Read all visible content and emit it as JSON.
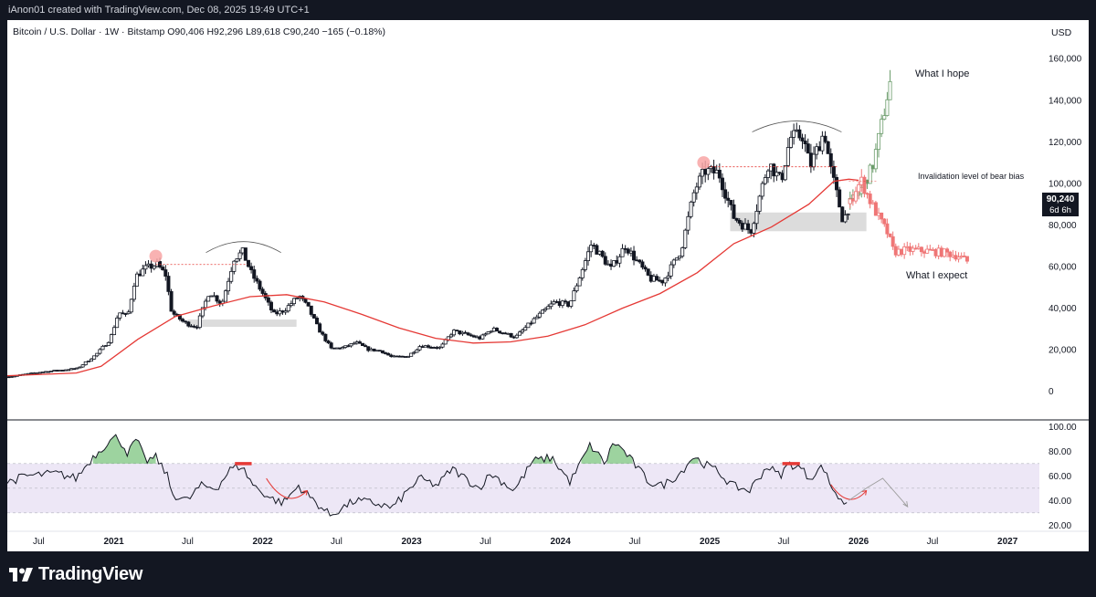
{
  "header": {
    "credit": "iAnon01 created with TradingView.com, Dec 08, 2025 19:49 UTC+1",
    "symbol": "Bitcoin / U.S. Dollar",
    "interval": "1W",
    "exchange": "Bitstamp",
    "ohlc": "O90,406  H92,296  L89,618  C90,240  −165 (−0.18%)"
  },
  "currency": "USD",
  "brand": "TradingView",
  "colors": {
    "candle": "#131722",
    "ma": "#e53935",
    "rsi": "#131722",
    "rsi_band": "#ede7f6",
    "overbought_fill": "#4caf50",
    "hope": "#6b9c6b",
    "expect": "#ef7676",
    "annotation_red": "#e53935"
  },
  "chart_data": {
    "type": "candlestick",
    "price_axis": {
      "ticks": [
        0,
        20000,
        40000,
        60000,
        80000,
        100000,
        120000,
        140000,
        160000
      ],
      "tick_labels": [
        "0",
        "20,000",
        "40,000",
        "60,000",
        "80,000",
        "100,000",
        "120,000",
        "140,000",
        "160,000"
      ],
      "range": [
        -12000,
        168000
      ]
    },
    "time_axis": {
      "range": [
        "2020-04-15",
        "2027-03-20"
      ],
      "ticks": [
        {
          "date": "2020-07-01",
          "label": "Jul",
          "bold": false
        },
        {
          "date": "2021-01-01",
          "label": "2021",
          "bold": true
        },
        {
          "date": "2021-07-01",
          "label": "Jul",
          "bold": false
        },
        {
          "date": "2022-01-01",
          "label": "2022",
          "bold": true
        },
        {
          "date": "2022-07-01",
          "label": "Jul",
          "bold": false
        },
        {
          "date": "2023-01-01",
          "label": "2023",
          "bold": true
        },
        {
          "date": "2023-07-01",
          "label": "Jul",
          "bold": false
        },
        {
          "date": "2024-01-01",
          "label": "2024",
          "bold": true
        },
        {
          "date": "2024-07-01",
          "label": "Jul",
          "bold": false
        },
        {
          "date": "2025-01-01",
          "label": "2025",
          "bold": true
        },
        {
          "date": "2025-07-01",
          "label": "Jul",
          "bold": false
        },
        {
          "date": "2026-01-01",
          "label": "2026",
          "bold": true
        },
        {
          "date": "2026-07-01",
          "label": "Jul",
          "bold": false
        },
        {
          "date": "2027-01-01",
          "label": "2027",
          "bold": true
        }
      ]
    },
    "price_path": [
      [
        "2020-04-15",
        7000
      ],
      [
        "2020-07-01",
        9200
      ],
      [
        "2020-10-01",
        11000
      ],
      [
        "2020-11-15",
        17500
      ],
      [
        "2020-12-20",
        25000
      ],
      [
        "2021-01-10",
        38000
      ],
      [
        "2021-02-01",
        36000
      ],
      [
        "2021-02-20",
        55000
      ],
      [
        "2021-03-15",
        59000
      ],
      [
        "2021-04-14",
        61000
      ],
      [
        "2021-05-05",
        56000
      ],
      [
        "2021-05-20",
        38000
      ],
      [
        "2021-06-20",
        33000
      ],
      [
        "2021-07-20",
        31000
      ],
      [
        "2021-08-20",
        48000
      ],
      [
        "2021-09-20",
        42000
      ],
      [
        "2021-10-20",
        64000
      ],
      [
        "2021-11-10",
        67000
      ],
      [
        "2021-12-01",
        57000
      ],
      [
        "2022-01-01",
        46000
      ],
      [
        "2022-01-25",
        37000
      ],
      [
        "2022-02-20",
        39000
      ],
      [
        "2022-03-28",
        46000
      ],
      [
        "2022-04-20",
        40000
      ],
      [
        "2022-05-15",
        30000
      ],
      [
        "2022-06-15",
        20500
      ],
      [
        "2022-07-15",
        21000
      ],
      [
        "2022-08-15",
        23500
      ],
      [
        "2022-09-15",
        20000
      ],
      [
        "2022-10-15",
        19500
      ],
      [
        "2022-11-10",
        16500
      ],
      [
        "2022-12-20",
        16800
      ],
      [
        "2023-01-20",
        22000
      ],
      [
        "2023-03-10",
        21000
      ],
      [
        "2023-04-10",
        29000
      ],
      [
        "2023-06-15",
        25500
      ],
      [
        "2023-07-15",
        30000
      ],
      [
        "2023-09-10",
        26000
      ],
      [
        "2023-10-25",
        34500
      ],
      [
        "2023-12-15",
        43000
      ],
      [
        "2024-01-20",
        41500
      ],
      [
        "2024-03-14",
        71000
      ],
      [
        "2024-05-01",
        59000
      ],
      [
        "2024-06-05",
        70000
      ],
      [
        "2024-08-05",
        54000
      ],
      [
        "2024-09-06",
        53000
      ],
      [
        "2024-10-20",
        68000
      ],
      [
        "2024-11-22",
        97000
      ],
      [
        "2024-12-17",
        106000
      ],
      [
        "2025-01-20",
        105000
      ],
      [
        "2025-02-25",
        84000
      ],
      [
        "2025-04-08",
        77000
      ],
      [
        "2025-05-22",
        110000
      ],
      [
        "2025-06-22",
        101000
      ],
      [
        "2025-07-14",
        122000
      ],
      [
        "2025-08-14",
        123000
      ],
      [
        "2025-09-01",
        108000
      ],
      [
        "2025-10-06",
        125000
      ],
      [
        "2025-10-20",
        108000
      ],
      [
        "2025-11-21",
        82000
      ],
      [
        "2025-12-08",
        90240
      ]
    ],
    "ma": {
      "label": "",
      "values": [
        [
          "2020-04-15",
          7500
        ],
        [
          "2020-10-01",
          8800
        ],
        [
          "2020-12-01",
          12000
        ],
        [
          "2021-03-01",
          25000
        ],
        [
          "2021-06-01",
          36000
        ],
        [
          "2021-09-01",
          41000
        ],
        [
          "2021-12-01",
          45500
        ],
        [
          "2022-03-01",
          46500
        ],
        [
          "2022-06-01",
          43000
        ],
        [
          "2022-09-01",
          37000
        ],
        [
          "2022-12-01",
          30500
        ],
        [
          "2023-03-01",
          25500
        ],
        [
          "2023-06-01",
          23200
        ],
        [
          "2023-09-01",
          23800
        ],
        [
          "2023-12-01",
          26500
        ],
        [
          "2024-03-01",
          32000
        ],
        [
          "2024-06-01",
          40000
        ],
        [
          "2024-09-01",
          47000
        ],
        [
          "2024-12-01",
          57000
        ],
        [
          "2025-03-01",
          71000
        ],
        [
          "2025-06-01",
          79000
        ],
        [
          "2025-09-01",
          90000
        ],
        [
          "2025-11-01",
          101000
        ],
        [
          "2025-12-08",
          102000
        ],
        [
          "2026-01-01",
          101500
        ]
      ]
    },
    "last_price": {
      "value": 90240,
      "label": "90,240",
      "countdown": "6d 6h"
    },
    "rsi": {
      "axis": {
        "ticks": [
          20,
          40,
          60,
          80,
          100
        ],
        "tick_labels": [
          "20.00",
          "40.00",
          "60.00",
          "80.00",
          "100.00"
        ],
        "range": [
          18,
          104
        ]
      },
      "band": [
        30,
        70
      ],
      "midline": 50,
      "values": [
        [
          "2020-04-15",
          55
        ],
        [
          "2020-06-01",
          60
        ],
        [
          "2020-08-15",
          62
        ],
        [
          "2020-10-01",
          58
        ],
        [
          "2020-11-10",
          75
        ],
        [
          "2020-12-20",
          88
        ],
        [
          "2021-01-10",
          92
        ],
        [
          "2021-02-05",
          78
        ],
        [
          "2021-02-25",
          90
        ],
        [
          "2021-03-20",
          72
        ],
        [
          "2021-04-14",
          75
        ],
        [
          "2021-05-10",
          62
        ],
        [
          "2021-05-25",
          45
        ],
        [
          "2021-07-01",
          40
        ],
        [
          "2021-08-01",
          52
        ],
        [
          "2021-09-10",
          50
        ],
        [
          "2021-10-15",
          66
        ],
        [
          "2021-11-10",
          68
        ],
        [
          "2021-12-10",
          52
        ],
        [
          "2022-01-20",
          42
        ],
        [
          "2022-02-20",
          38
        ],
        [
          "2022-03-30",
          52
        ],
        [
          "2022-04-20",
          45
        ],
        [
          "2022-06-15",
          28
        ],
        [
          "2022-08-15",
          40
        ],
        [
          "2022-10-01",
          38
        ],
        [
          "2022-11-15",
          34
        ],
        [
          "2023-01-20",
          58
        ],
        [
          "2023-03-05",
          52
        ],
        [
          "2023-04-10",
          66
        ],
        [
          "2023-06-15",
          50
        ],
        [
          "2023-07-15",
          62
        ],
        [
          "2023-09-10",
          48
        ],
        [
          "2023-10-25",
          72
        ],
        [
          "2023-12-10",
          75
        ],
        [
          "2024-01-25",
          55
        ],
        [
          "2024-03-14",
          85
        ],
        [
          "2024-04-20",
          70
        ],
        [
          "2024-05-10",
          88
        ],
        [
          "2024-06-05",
          80
        ],
        [
          "2024-08-05",
          55
        ],
        [
          "2024-09-06",
          52
        ],
        [
          "2024-10-20",
          62
        ],
        [
          "2024-11-22",
          76
        ],
        [
          "2024-12-17",
          70
        ],
        [
          "2025-01-20",
          64
        ],
        [
          "2025-02-25",
          52
        ],
        [
          "2025-04-08",
          48
        ],
        [
          "2025-05-22",
          68
        ],
        [
          "2025-06-22",
          60
        ],
        [
          "2025-07-14",
          70
        ],
        [
          "2025-08-14",
          66
        ],
        [
          "2025-09-01",
          58
        ],
        [
          "2025-10-06",
          68
        ],
        [
          "2025-10-20",
          55
        ],
        [
          "2025-11-21",
          38
        ],
        [
          "2025-12-08",
          40
        ]
      ]
    },
    "scenarios": {
      "hope": {
        "label": "What I hope",
        "path": [
          [
            "2025-12-08",
            90240
          ],
          [
            "2026-01-01",
            96000
          ],
          [
            "2026-02-01",
            108000
          ],
          [
            "2026-02-20",
            125000
          ],
          [
            "2026-03-10",
            143000
          ],
          [
            "2026-03-20",
            152000
          ]
        ]
      },
      "expect": {
        "label": "What I expect",
        "path": [
          [
            "2025-12-08",
            90240
          ],
          [
            "2025-12-20",
            97000
          ],
          [
            "2026-01-05",
            101000
          ],
          [
            "2026-01-25",
            92000
          ],
          [
            "2026-02-15",
            84000
          ],
          [
            "2026-03-10",
            76000
          ],
          [
            "2026-03-25",
            67000
          ],
          [
            "2026-05-01",
            68000
          ],
          [
            "2026-06-15",
            67500
          ],
          [
            "2026-08-01",
            66500
          ],
          [
            "2026-09-01",
            65000
          ],
          [
            "2026-09-25",
            62000
          ]
        ]
      }
    },
    "invalidation": {
      "label": "Invalidation level of bear bias",
      "value": 101000
    },
    "support_zones": [
      {
        "from": "2021-07-01",
        "to": "2022-03-25",
        "low": 31000,
        "high": 34500
      },
      {
        "from": "2025-02-20",
        "to": "2026-01-20",
        "low": 77000,
        "high": 86000
      }
    ],
    "resistance_lines": [
      {
        "from": "2021-04-14",
        "to": "2021-11-25",
        "value": 61000
      },
      {
        "from": "2024-12-17",
        "to": "2025-11-10",
        "value": 108000
      }
    ],
    "top_markers": [
      {
        "date": "2021-04-14",
        "value": 65000
      },
      {
        "date": "2024-12-17",
        "value": 110000
      }
    ],
    "arcs": [
      {
        "from": "2021-08-15",
        "to": "2022-02-15",
        "peak": 72000
      },
      {
        "from": "2025-04-15",
        "to": "2025-11-20",
        "peak": 130000
      }
    ],
    "rsi_annotations": {
      "tops": [
        [
          "2021-10-25",
          "2021-12-05",
          70
        ],
        [
          "2025-06-28",
          "2025-08-10",
          70
        ]
      ],
      "curved_arrows": [
        [
          "2022-01-10",
          58,
          "2022-04-20",
          48
        ],
        [
          "2025-10-25",
          53,
          "2026-01-20",
          48
        ]
      ],
      "projection": [
        [
          "2025-12-08",
          40
        ],
        [
          "2026-01-20",
          50
        ],
        [
          "2026-03-01",
          58
        ],
        [
          "2026-05-01",
          35
        ]
      ]
    }
  }
}
